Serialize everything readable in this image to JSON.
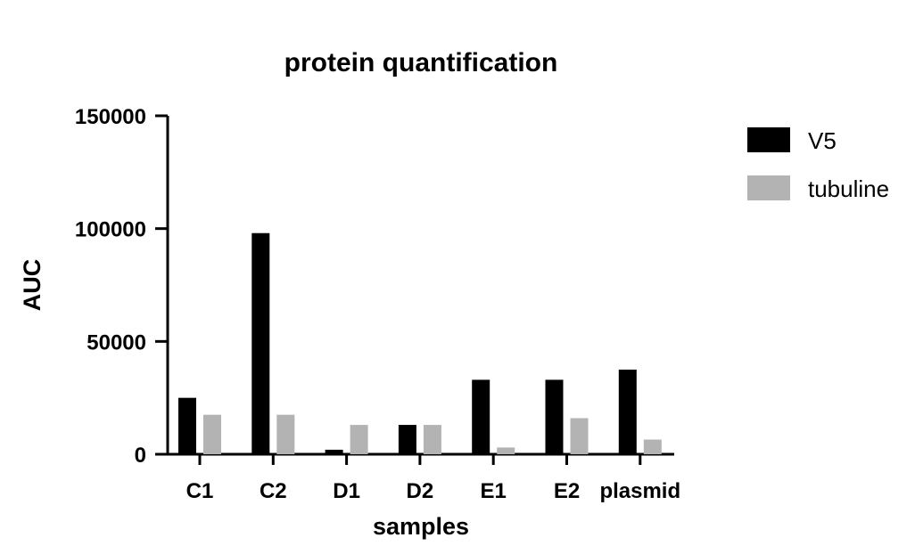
{
  "chart_data": {
    "type": "bar",
    "title": "protein quantification",
    "xlabel": "samples",
    "ylabel": "AUC",
    "categories": [
      "C1",
      "C2",
      "D1",
      "D2",
      "E1",
      "E2",
      "plasmid"
    ],
    "series": [
      {
        "name": "V5",
        "color": "#000000",
        "values": [
          25000,
          98000,
          2000,
          13000,
          33000,
          33000,
          37500
        ]
      },
      {
        "name": "tubuline",
        "color": "#b3b3b3",
        "values": [
          17500,
          17500,
          13000,
          13000,
          3000,
          16000,
          6500
        ]
      }
    ],
    "ylim": [
      0,
      150000
    ],
    "yticks": [
      0,
      50000,
      100000,
      150000
    ],
    "ytick_labels": [
      "0",
      "50000",
      "100000",
      "150000"
    ],
    "grid": false,
    "legend_position": "top-right"
  }
}
